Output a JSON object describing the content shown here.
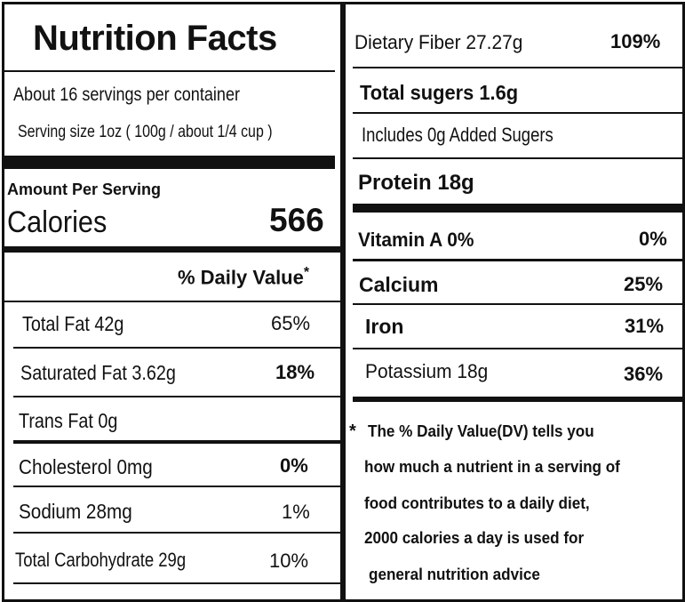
{
  "title": "Nutrition Facts",
  "servings_per_container": "About 16 servings per container",
  "serving_size": "Serving size 1oz ( 100g / about 1/4 cup )",
  "amount_per_serving": "Amount Per Serving",
  "calories": {
    "label": "Calories",
    "value": "566"
  },
  "daily_value_header": "% Daily Value",
  "daily_value_asterisk": "*",
  "left_rows": [
    {
      "label": "Total Fat  42g",
      "dv": "65%"
    },
    {
      "label": "Saturated Fat 3.62g",
      "dv": "18%"
    },
    {
      "label": "Trans Fat 0g",
      "dv": ""
    },
    {
      "label": "Cholesterol  0mg",
      "dv": "0%"
    },
    {
      "label": "Sodium  28mg",
      "dv": "1%"
    },
    {
      "label": "Total Carbohydrate  29g",
      "dv": "10%"
    }
  ],
  "right_rows": [
    {
      "label": "Dietary Fiber  27.27g",
      "dv": "109%"
    },
    {
      "label": "Total sugers 1.6g",
      "dv": ""
    },
    {
      "label": "Includes 0g Added Sugers",
      "dv": ""
    },
    {
      "label": "Protein 18g",
      "dv": ""
    },
    {
      "label": "Vitamin A  0%",
      "dv": "0%"
    },
    {
      "label": "Calcium",
      "dv": "25%"
    },
    {
      "label": "Iron",
      "dv": "31%"
    },
    {
      "label": "Potassium  18g",
      "dv": "36%"
    }
  ],
  "footnote": {
    "star": "*",
    "lines": [
      "The % Daily Value(DV)  tells you",
      "how much a nutrient in a serving of",
      "food contributes to a daily diet,",
      "2000 calories a day is used for",
      "general nutrition advice"
    ]
  },
  "colors": {
    "ink": "#111111",
    "background": "#ffffff"
  }
}
